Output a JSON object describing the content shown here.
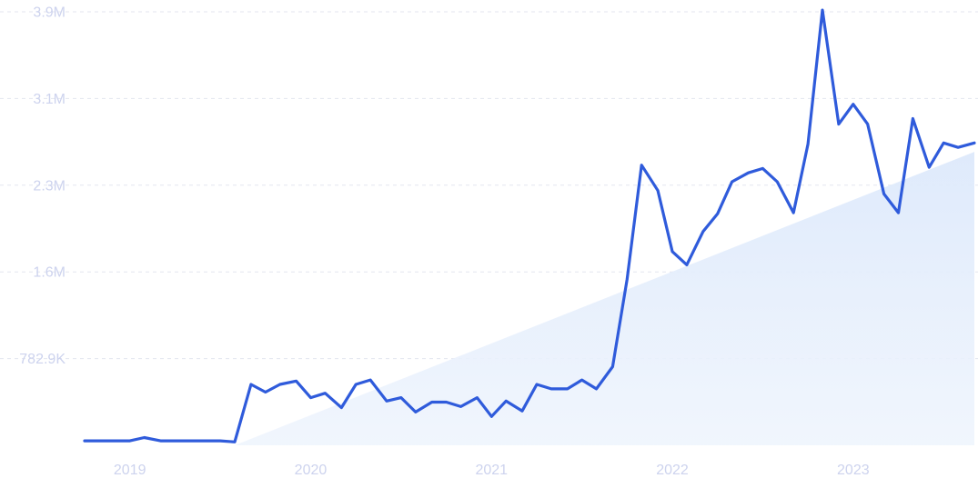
{
  "chart_data": {
    "type": "line",
    "title": "",
    "xlabel": "",
    "ylabel": "",
    "grid": true,
    "legend": "none",
    "colors": {
      "line": "#2f5bdb",
      "trend_fill": "#e6f0fc",
      "grid": "#e3e6ef",
      "tick_text": "#cdd3ee"
    },
    "ylim": [
      0,
      3900000
    ],
    "y_ticks": [
      {
        "label": "782.9K",
        "value": 782900
      },
      {
        "label": "1.6M",
        "value": 1565800
      },
      {
        "label": "2.3M",
        "value": 2348700
      },
      {
        "label": "3.1M",
        "value": 3131600
      },
      {
        "label": "3.9M",
        "value": 3914500
      }
    ],
    "x_ticks": [
      {
        "label": "2019",
        "value": 2019.0
      },
      {
        "label": "2020",
        "value": 2020.0
      },
      {
        "label": "2021",
        "value": 2021.0
      },
      {
        "label": "2022",
        "value": 2022.0
      },
      {
        "label": "2023",
        "value": 2023.0
      }
    ],
    "xlim": [
      2018.75,
      2023.67
    ],
    "trend": {
      "x": [
        2019.58,
        2023.67
      ],
      "y": [
        0,
        2650000
      ]
    },
    "series": [
      {
        "x": [
          2018.75,
          2018.83,
          2018.92,
          2019.0,
          2019.08,
          2019.17,
          2019.25,
          2019.33,
          2019.42,
          2019.5,
          2019.58,
          2019.67,
          2019.75,
          2019.83,
          2019.92,
          2020.0,
          2020.08,
          2020.17,
          2020.25,
          2020.33,
          2020.42,
          2020.5,
          2020.58,
          2020.67,
          2020.75,
          2020.83,
          2020.92,
          2021.0,
          2021.08,
          2021.17,
          2021.25,
          2021.33,
          2021.42,
          2021.5,
          2021.58,
          2021.67,
          2021.75,
          2021.83,
          2021.92,
          2022.0,
          2022.08,
          2022.17,
          2022.25,
          2022.33,
          2022.42,
          2022.5,
          2022.58,
          2022.67,
          2022.75,
          2022.83,
          2022.92,
          2023.0,
          2023.08,
          2023.17,
          2023.25,
          2023.33,
          2023.42,
          2023.5,
          2023.58,
          2023.67
        ],
        "y": [
          40000,
          40000,
          40000,
          40000,
          70000,
          40000,
          40000,
          40000,
          40000,
          40000,
          30000,
          550000,
          480000,
          550000,
          580000,
          430000,
          470000,
          340000,
          550000,
          590000,
          400000,
          430000,
          300000,
          390000,
          390000,
          350000,
          430000,
          260000,
          400000,
          310000,
          550000,
          510000,
          510000,
          590000,
          510000,
          710000,
          1500000,
          2530000,
          2300000,
          1750000,
          1630000,
          1930000,
          2090000,
          2380000,
          2460000,
          2500000,
          2380000,
          2100000,
          2720000,
          3930000,
          2900000,
          3080000,
          2900000,
          2270000,
          2100000,
          2950000,
          2510000,
          2730000,
          2690000,
          2730000
        ]
      }
    ]
  }
}
